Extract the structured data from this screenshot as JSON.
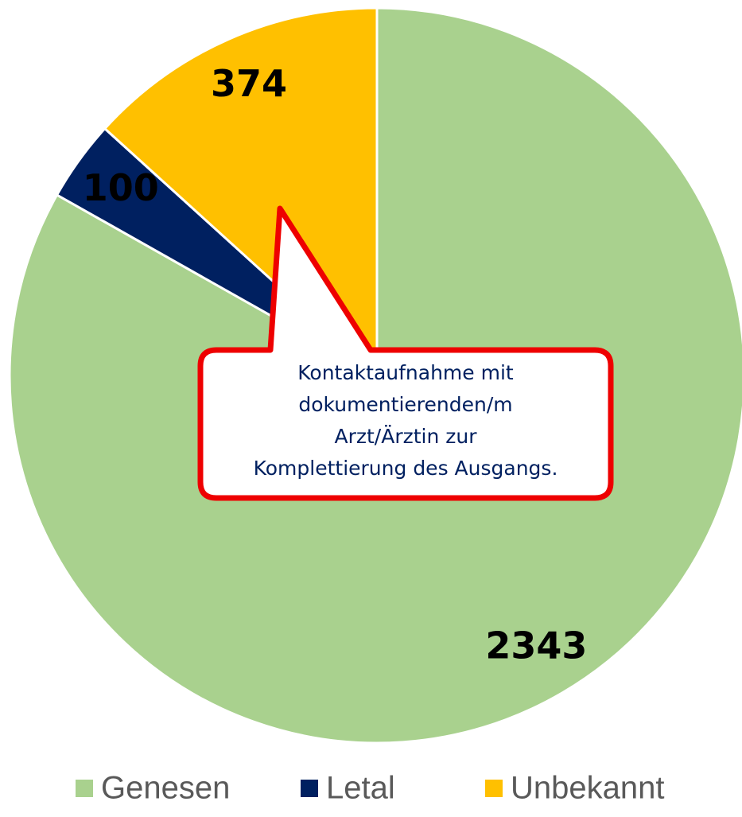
{
  "chart_data": {
    "type": "pie",
    "categories": [
      "Genesen",
      "Letal",
      "Unbekannt"
    ],
    "values": [
      2343,
      100,
      374
    ],
    "colors": [
      "#a9d18e",
      "#002060",
      "#ffc000"
    ],
    "annotation": [
      "Kontaktaufnahme mit",
      "dokumentierenden/m",
      "Arzt/Ärztin zur",
      "Komplettierung des Ausgangs."
    ],
    "legend": "bottom"
  }
}
